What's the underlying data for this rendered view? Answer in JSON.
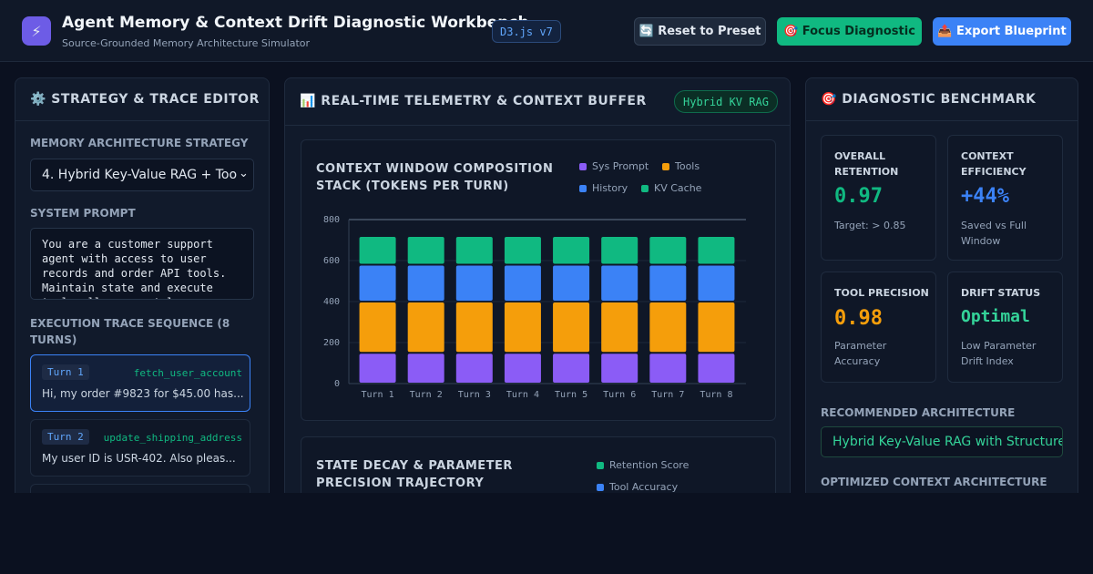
{
  "header": {
    "icon": "⚡",
    "title": "Agent Memory & Context Drift Diagnostic Workbench",
    "subtitle": "Source-Grounded Memory Architecture Simulator",
    "badge": "D3.js v7",
    "buttons": [
      "🔄 Reset to Preset",
      "🎯 Focus Diagnostic",
      "📤 Export Blueprint"
    ]
  },
  "editor": {
    "title": "⚙️ STRATEGY & TRACE EDITOR",
    "strategy_label": "MEMORY ARCHITECTURE STRATEGY",
    "strategy_value": "4. Hybrid Key-Value RAG + Too",
    "prompt_label": "SYSTEM PROMPT",
    "prompt_value": "You are a customer support agent with access to user records and order API tools. Maintain state and execute tool calls accurately.",
    "trace_label": "EXECUTION TRACE SEQUENCE (8 TURNS)",
    "turns": [
      {
        "turn": "Turn 1",
        "tool": "fetch_user_account",
        "text": "Hi, my order #9823 for $45.00 has..."
      },
      {
        "turn": "Turn 2",
        "tool": "update_shipping_address",
        "text": "My user ID is USR-402. Also pleas..."
      }
    ]
  },
  "telemetry": {
    "title": "📊 REAL-TIME TELEMETRY & CONTEXT BUFFER",
    "badge": "Hybrid KV RAG"
  },
  "chart_data": {
    "type": "bar",
    "stacked": true,
    "title": "CONTEXT WINDOW COMPOSITION STACK (TOKENS PER TURN)",
    "categories": [
      "Turn 1",
      "Turn 2",
      "Turn 3",
      "Turn 4",
      "Turn 5",
      "Turn 6",
      "Turn 7",
      "Turn 8"
    ],
    "series": [
      {
        "name": "Sys Prompt",
        "color": "#8b5cf6",
        "values": [
          150,
          150,
          150,
          150,
          150,
          150,
          150,
          150
        ]
      },
      {
        "name": "Tools",
        "color": "#f59e0b",
        "values": [
          250,
          250,
          250,
          250,
          250,
          250,
          250,
          250
        ]
      },
      {
        "name": "History",
        "color": "#3b82f6",
        "values": [
          180,
          180,
          180,
          180,
          180,
          180,
          180,
          180
        ]
      },
      {
        "name": "KV Cache",
        "color": "#10b981",
        "values": [
          140,
          140,
          140,
          140,
          140,
          140,
          140,
          140
        ]
      }
    ],
    "ylim": [
      0,
      800
    ],
    "yticks": [
      0,
      200,
      400,
      600,
      800
    ],
    "grid": true
  },
  "decay_panel": {
    "title": "STATE DECAY & PARAMETER PRECISION TRAJECTORY",
    "legend": [
      {
        "name": "Retention Score",
        "color": "#10b981"
      },
      {
        "name": "Tool Accuracy",
        "color": "#3b82f6"
      }
    ]
  },
  "benchmark": {
    "title": "🎯 DIAGNOSTIC BENCHMARK",
    "cards": [
      {
        "label": "OVERALL RETENTION",
        "value": "0.97",
        "note": "Target: > 0.85"
      },
      {
        "label": "CONTEXT EFFICIENCY",
        "value": "+44%",
        "note": "Saved vs Full Window"
      },
      {
        "label": "TOOL PRECISION",
        "value": "0.98",
        "note": "Parameter Accuracy"
      },
      {
        "label": "DRIFT STATUS",
        "value": "Optimal",
        "note": "Low Parameter Drift Index"
      }
    ],
    "rec_label": "RECOMMENDED ARCHITECTURE",
    "rec_value": "Hybrid Key-Value RAG with Structure",
    "blueprint_label": "OPTIMIZED CONTEXT ARCHITECTURE BLUEPRINT"
  }
}
